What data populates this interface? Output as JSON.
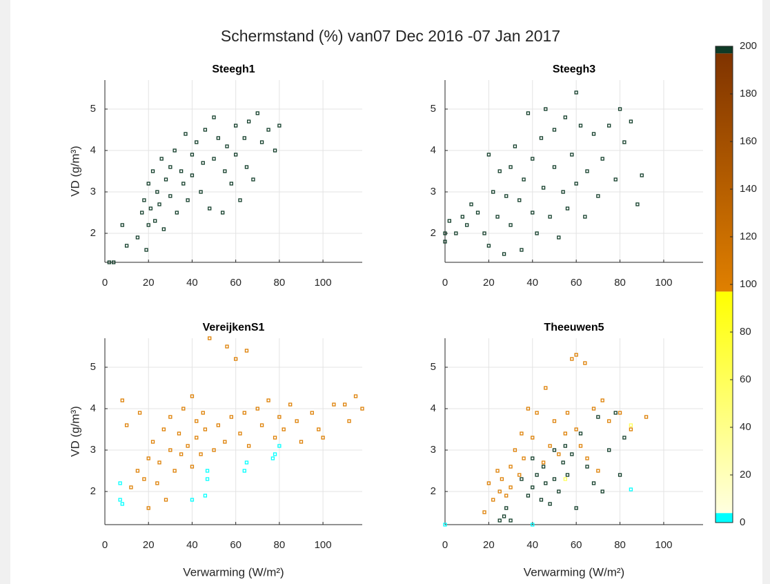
{
  "title": "Schermstand (%) van07 Dec 2016 -07 Jan 2017",
  "colorbar": {
    "clim": [
      0,
      200
    ],
    "ticks": [
      0,
      20,
      40,
      60,
      80,
      100,
      120,
      140,
      160,
      180,
      200
    ],
    "colormap": [
      {
        "value": 0,
        "color": "#00ffff"
      },
      {
        "value": 4,
        "color": "#00ffff"
      },
      {
        "value": 4,
        "color": "#ffffe0"
      },
      {
        "value": 97,
        "color": "#ffff00"
      },
      {
        "value": 97,
        "color": "#e08000"
      },
      {
        "value": 197,
        "color": "#7f3300"
      },
      {
        "value": 197,
        "color": "#0f3b27"
      },
      {
        "value": 200,
        "color": "#0f3b27"
      }
    ]
  },
  "chart_data": [
    {
      "type": "scatter",
      "title": "Steegh1",
      "ylabel": "VD (g/m³)",
      "xlim": [
        0,
        118
      ],
      "ylim": [
        1.3,
        5.7
      ],
      "xticks": [
        0,
        20,
        40,
        60,
        80,
        100
      ],
      "yticks": [
        2,
        3,
        4,
        5
      ],
      "grid": true,
      "series": [
        {
          "c": 200,
          "x": [
            2,
            4,
            8,
            10,
            15,
            17,
            18,
            19,
            20,
            20,
            21,
            22,
            23,
            24,
            25,
            26,
            27,
            28,
            30,
            30,
            32,
            33,
            35,
            36,
            37,
            38,
            40,
            40,
            42,
            44,
            45,
            46,
            48,
            50,
            50,
            52,
            54,
            55,
            56,
            58,
            60,
            60,
            62,
            64,
            65,
            66,
            68,
            70,
            72,
            75,
            78,
            80
          ],
          "y": [
            1.3,
            1.3,
            2.2,
            1.7,
            1.9,
            2.5,
            2.8,
            1.6,
            2.2,
            3.2,
            2.6,
            3.5,
            2.3,
            3.0,
            2.7,
            3.8,
            2.1,
            3.3,
            2.9,
            3.6,
            4.0,
            2.5,
            3.5,
            3.2,
            4.4,
            2.8,
            3.9,
            3.4,
            4.2,
            3.0,
            3.7,
            4.5,
            2.6,
            4.8,
            3.8,
            4.3,
            2.5,
            3.5,
            4.1,
            3.2,
            4.6,
            3.9,
            2.8,
            4.3,
            3.6,
            4.7,
            3.3,
            4.9,
            4.2,
            4.5,
            4.0,
            4.6
          ]
        }
      ]
    },
    {
      "type": "scatter",
      "title": "Steegh3",
      "xlim": [
        0,
        118
      ],
      "ylim": [
        1.3,
        5.7
      ],
      "xticks": [
        0,
        20,
        40,
        60,
        80,
        100
      ],
      "yticks": [
        2,
        3,
        4,
        5
      ],
      "grid": true,
      "series": [
        {
          "c": 200,
          "x": [
            0,
            0,
            2,
            5,
            8,
            10,
            12,
            15,
            18,
            20,
            20,
            22,
            24,
            25,
            27,
            28,
            30,
            30,
            32,
            34,
            35,
            36,
            38,
            40,
            40,
            42,
            44,
            45,
            46,
            48,
            50,
            50,
            52,
            54,
            55,
            56,
            58,
            60,
            60,
            62,
            64,
            65,
            68,
            70,
            72,
            75,
            78,
            80,
            82,
            85,
            88,
            90
          ],
          "y": [
            2.0,
            1.8,
            2.3,
            2.0,
            2.4,
            2.2,
            2.7,
            2.5,
            2.0,
            3.9,
            1.7,
            3.0,
            2.4,
            3.5,
            1.5,
            2.9,
            3.6,
            2.2,
            4.1,
            2.8,
            1.6,
            3.3,
            4.9,
            2.5,
            3.8,
            2.0,
            4.3,
            3.1,
            5.0,
            2.4,
            3.6,
            4.5,
            1.9,
            3.0,
            4.8,
            2.6,
            3.9,
            5.4,
            3.2,
            4.6,
            2.4,
            3.5,
            4.4,
            2.9,
            3.8,
            4.6,
            3.3,
            5.0,
            4.2,
            4.7,
            2.7,
            3.4
          ]
        }
      ]
    },
    {
      "type": "scatter",
      "title": "VereijkenS1",
      "xlabel": "Verwarming (W/m²)",
      "ylabel": "VD (g/m³)",
      "xlim": [
        0,
        118
      ],
      "ylim": [
        1.2,
        5.7
      ],
      "xticks": [
        0,
        20,
        40,
        60,
        80,
        100
      ],
      "yticks": [
        2,
        3,
        4,
        5
      ],
      "grid": true,
      "series": [
        {
          "c": 100,
          "x": [
            8,
            10,
            12,
            15,
            16,
            18,
            20,
            20,
            22,
            24,
            25,
            27,
            28,
            30,
            30,
            32,
            34,
            35,
            36,
            38,
            40,
            40,
            42,
            42,
            44,
            45,
            46,
            48,
            50,
            52,
            55,
            56,
            58,
            60,
            62,
            64,
            65,
            66,
            70,
            72,
            75,
            78,
            80,
            82,
            85,
            88,
            90,
            95,
            98,
            100,
            105,
            110,
            112,
            115,
            118
          ],
          "y": [
            4.2,
            3.6,
            2.1,
            2.5,
            3.9,
            2.3,
            2.8,
            1.6,
            3.2,
            2.2,
            2.7,
            3.5,
            1.8,
            3.0,
            3.8,
            2.5,
            3.4,
            2.9,
            4.0,
            3.1,
            4.3,
            2.6,
            3.7,
            3.3,
            2.9,
            3.9,
            3.5,
            5.7,
            3.0,
            3.6,
            3.2,
            5.5,
            3.8,
            5.2,
            3.4,
            3.9,
            5.4,
            3.1,
            4.0,
            3.6,
            4.2,
            3.3,
            3.8,
            3.5,
            4.1,
            3.7,
            3.2,
            3.9,
            3.5,
            3.3,
            4.1,
            4.1,
            3.7,
            4.3,
            4.0
          ]
        },
        {
          "c": 0,
          "x": [
            7,
            7,
            8,
            40,
            46,
            47,
            47,
            64,
            65,
            77,
            78,
            80
          ],
          "y": [
            2.2,
            1.8,
            1.7,
            1.8,
            1.9,
            2.3,
            2.5,
            2.5,
            2.7,
            2.8,
            2.9,
            3.1
          ]
        }
      ]
    },
    {
      "type": "scatter",
      "title": "Theeuwen5",
      "xlabel": "Verwarming (W/m²)",
      "xlim": [
        0,
        118
      ],
      "ylim": [
        1.2,
        5.7
      ],
      "xticks": [
        0,
        20,
        40,
        60,
        80,
        100
      ],
      "yticks": [
        2,
        3,
        4,
        5
      ],
      "grid": true,
      "series": [
        {
          "c": 100,
          "x": [
            18,
            20,
            22,
            24,
            25,
            26,
            28,
            30,
            30,
            32,
            34,
            35,
            36,
            38,
            40,
            42,
            45,
            46,
            48,
            50,
            52,
            55,
            56,
            58,
            60,
            60,
            62,
            64,
            65,
            68,
            70,
            72,
            75,
            80,
            85,
            92
          ],
          "y": [
            1.5,
            2.2,
            1.8,
            2.5,
            2.0,
            2.3,
            1.9,
            2.6,
            2.1,
            3.0,
            2.4,
            3.4,
            2.8,
            4.0,
            3.3,
            3.9,
            2.7,
            4.5,
            3.1,
            3.7,
            2.9,
            3.4,
            3.9,
            5.2,
            3.5,
            5.3,
            3.1,
            5.1,
            2.8,
            4.0,
            2.5,
            4.2,
            3.7,
            3.9,
            3.5,
            3.8
          ]
        },
        {
          "c": 200,
          "x": [
            25,
            27,
            28,
            30,
            35,
            38,
            40,
            40,
            42,
            44,
            45,
            46,
            48,
            50,
            50,
            52,
            54,
            55,
            56,
            58,
            60,
            62,
            65,
            68,
            70,
            72,
            75,
            78,
            80,
            82
          ],
          "y": [
            1.3,
            1.4,
            1.6,
            1.3,
            2.3,
            1.9,
            2.8,
            2.1,
            2.4,
            1.8,
            2.6,
            2.2,
            1.7,
            3.0,
            2.3,
            2.0,
            2.7,
            3.1,
            2.4,
            2.9,
            1.6,
            3.4,
            2.6,
            2.2,
            3.8,
            2.0,
            3.0,
            3.9,
            2.4,
            3.3
          ]
        },
        {
          "c": 0,
          "x": [
            0,
            40,
            85
          ],
          "y": [
            1.2,
            1.2,
            2.05
          ]
        },
        {
          "c": 60,
          "x": [
            85,
            55
          ],
          "y": [
            3.6,
            2.3
          ]
        }
      ]
    }
  ]
}
